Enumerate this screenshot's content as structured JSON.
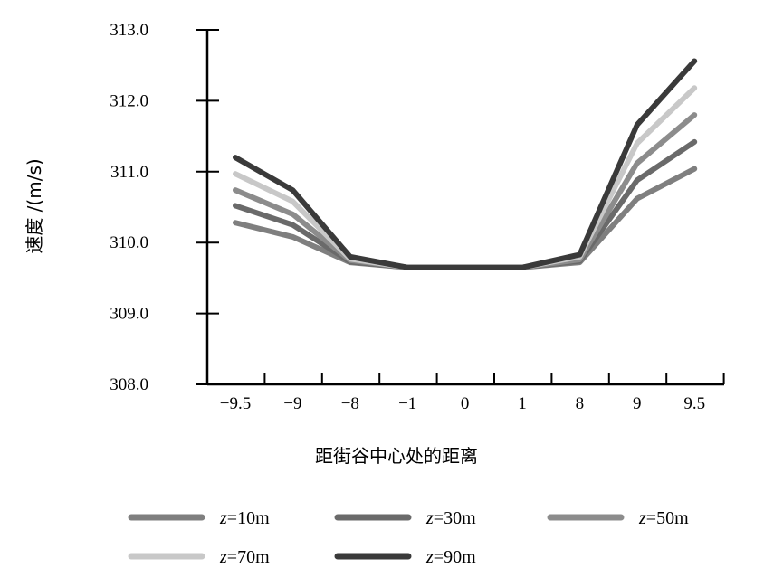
{
  "chart_data": {
    "type": "line",
    "title": "",
    "xlabel": "距街谷中心处的距离",
    "ylabel": "速度 /(m/s)",
    "categories": [
      "−9.5",
      "−9",
      "−8",
      "−1",
      "0",
      "1",
      "8",
      "9",
      "9.5"
    ],
    "yticks": [
      "308.0",
      "309.0",
      "310.0",
      "311.0",
      "312.0",
      "313.0"
    ],
    "ylim": [
      308.0,
      313.0
    ],
    "grid": false,
    "legend_position": "bottom",
    "legend_var": "z",
    "series": [
      {
        "name": "=10m",
        "color": "#7f7f7f",
        "values": [
          310.28,
          310.08,
          309.72,
          309.65,
          309.65,
          309.65,
          309.72,
          310.62,
          311.04
        ]
      },
      {
        "name": "=30m",
        "color": "#6a6a6a",
        "values": [
          310.52,
          310.25,
          309.73,
          309.65,
          309.65,
          309.65,
          309.74,
          310.88,
          311.42
        ]
      },
      {
        "name": "=50m",
        "color": "#8c8c8c",
        "values": [
          310.74,
          310.4,
          309.75,
          309.65,
          309.65,
          309.65,
          309.76,
          311.12,
          311.8
        ]
      },
      {
        "name": "=70m",
        "color": "#c8c8c8",
        "values": [
          310.97,
          310.58,
          309.77,
          309.65,
          309.65,
          309.65,
          309.8,
          311.4,
          312.18
        ]
      },
      {
        "name": "=90m",
        "color": "#3a3a3a",
        "values": [
          311.2,
          310.74,
          309.8,
          309.65,
          309.65,
          309.65,
          309.83,
          311.66,
          312.56
        ]
      }
    ]
  }
}
